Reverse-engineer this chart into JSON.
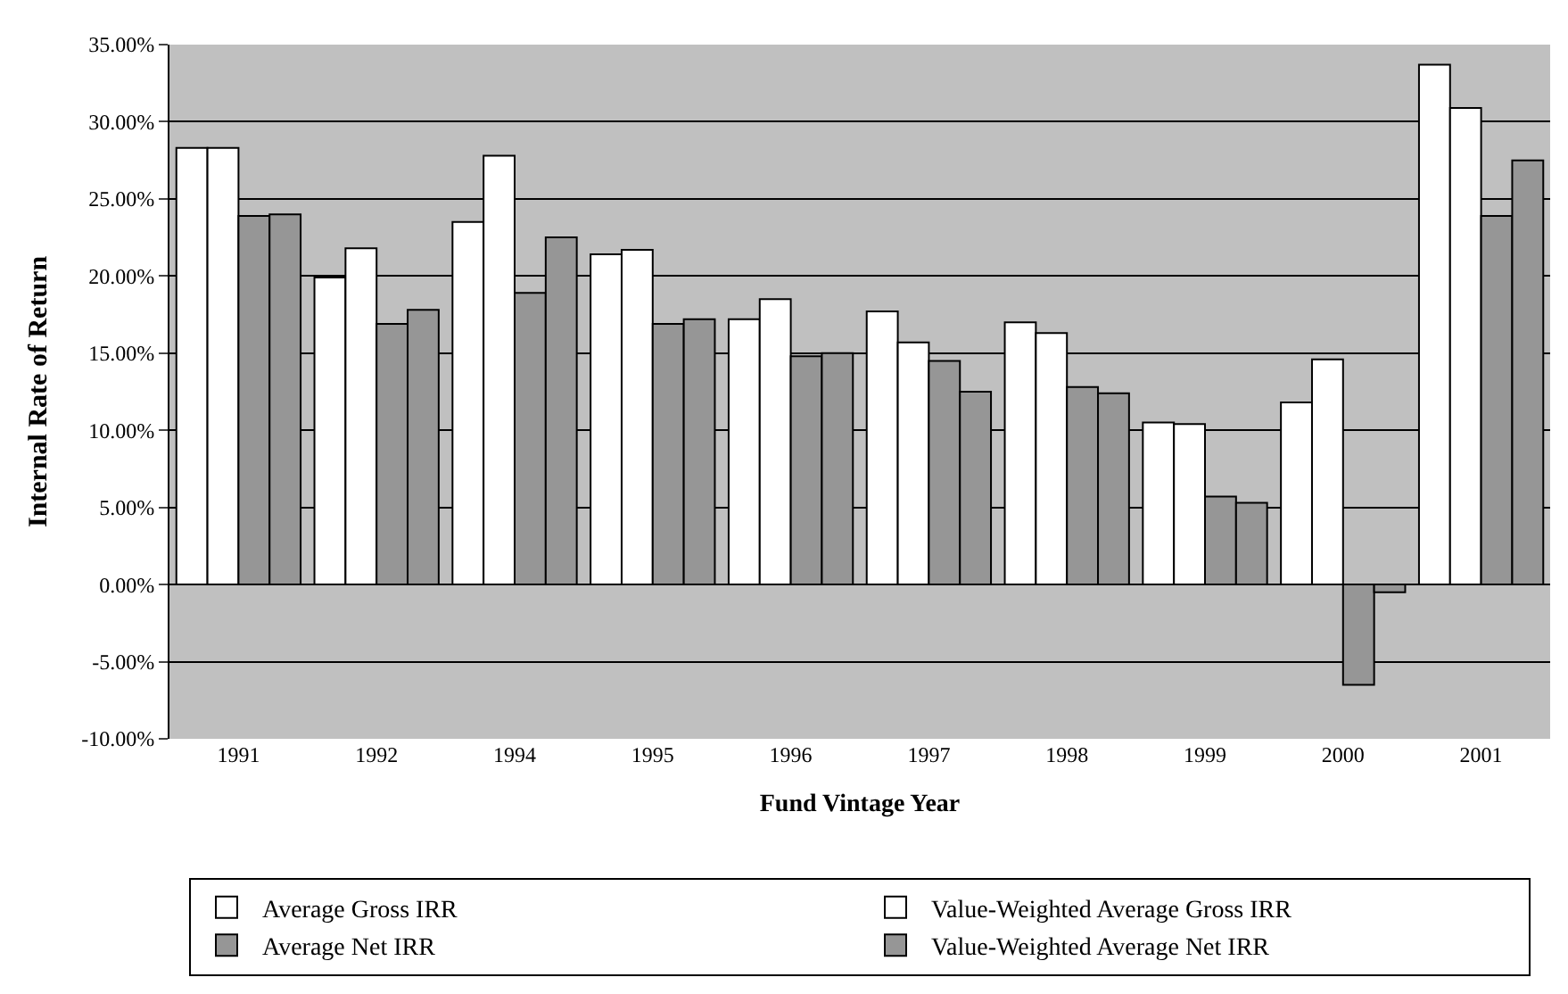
{
  "chart_data": {
    "type": "bar",
    "xlabel": "Fund Vintage Year",
    "ylabel": "Internal Rate of Return",
    "categories": [
      "1991",
      "1992",
      "1994",
      "1995",
      "1996",
      "1997",
      "1998",
      "1999",
      "2000",
      "2001"
    ],
    "series": [
      {
        "name": "Average Gross IRR",
        "color": "#ffffff",
        "values": [
          28.3,
          19.9,
          23.5,
          21.4,
          17.2,
          17.7,
          17.0,
          10.5,
          11.8,
          33.7
        ]
      },
      {
        "name": "Value-Weighted Average Gross IRR",
        "color": "#ffffff",
        "values": [
          28.3,
          21.8,
          27.8,
          21.7,
          18.5,
          15.7,
          16.3,
          10.4,
          14.6,
          30.9
        ]
      },
      {
        "name": "Average Net IRR",
        "color": "#969696",
        "values": [
          23.9,
          16.9,
          18.9,
          16.9,
          14.8,
          14.5,
          12.8,
          5.7,
          -6.5,
          23.9
        ]
      },
      {
        "name": "Value-Weighted Average Net IRR",
        "color": "#969696",
        "values": [
          24.0,
          17.8,
          22.5,
          17.2,
          15.0,
          12.5,
          12.4,
          5.3,
          -0.5,
          27.5
        ]
      }
    ],
    "ylim": [
      -10,
      35
    ],
    "yticks": [
      {
        "value": -10,
        "label": "-10.00%"
      },
      {
        "value": -5,
        "label": "-5.00%"
      },
      {
        "value": 0,
        "label": "0.00%"
      },
      {
        "value": 5,
        "label": "5.00%"
      },
      {
        "value": 10,
        "label": "10.00%"
      },
      {
        "value": 15,
        "label": "15.00%"
      },
      {
        "value": 20,
        "label": "20.00%"
      },
      {
        "value": 25,
        "label": "25.00%"
      },
      {
        "value": 30,
        "label": "30.00%"
      },
      {
        "value": 35,
        "label": "35.00%"
      }
    ],
    "grid": "y",
    "legend": "bottom"
  }
}
